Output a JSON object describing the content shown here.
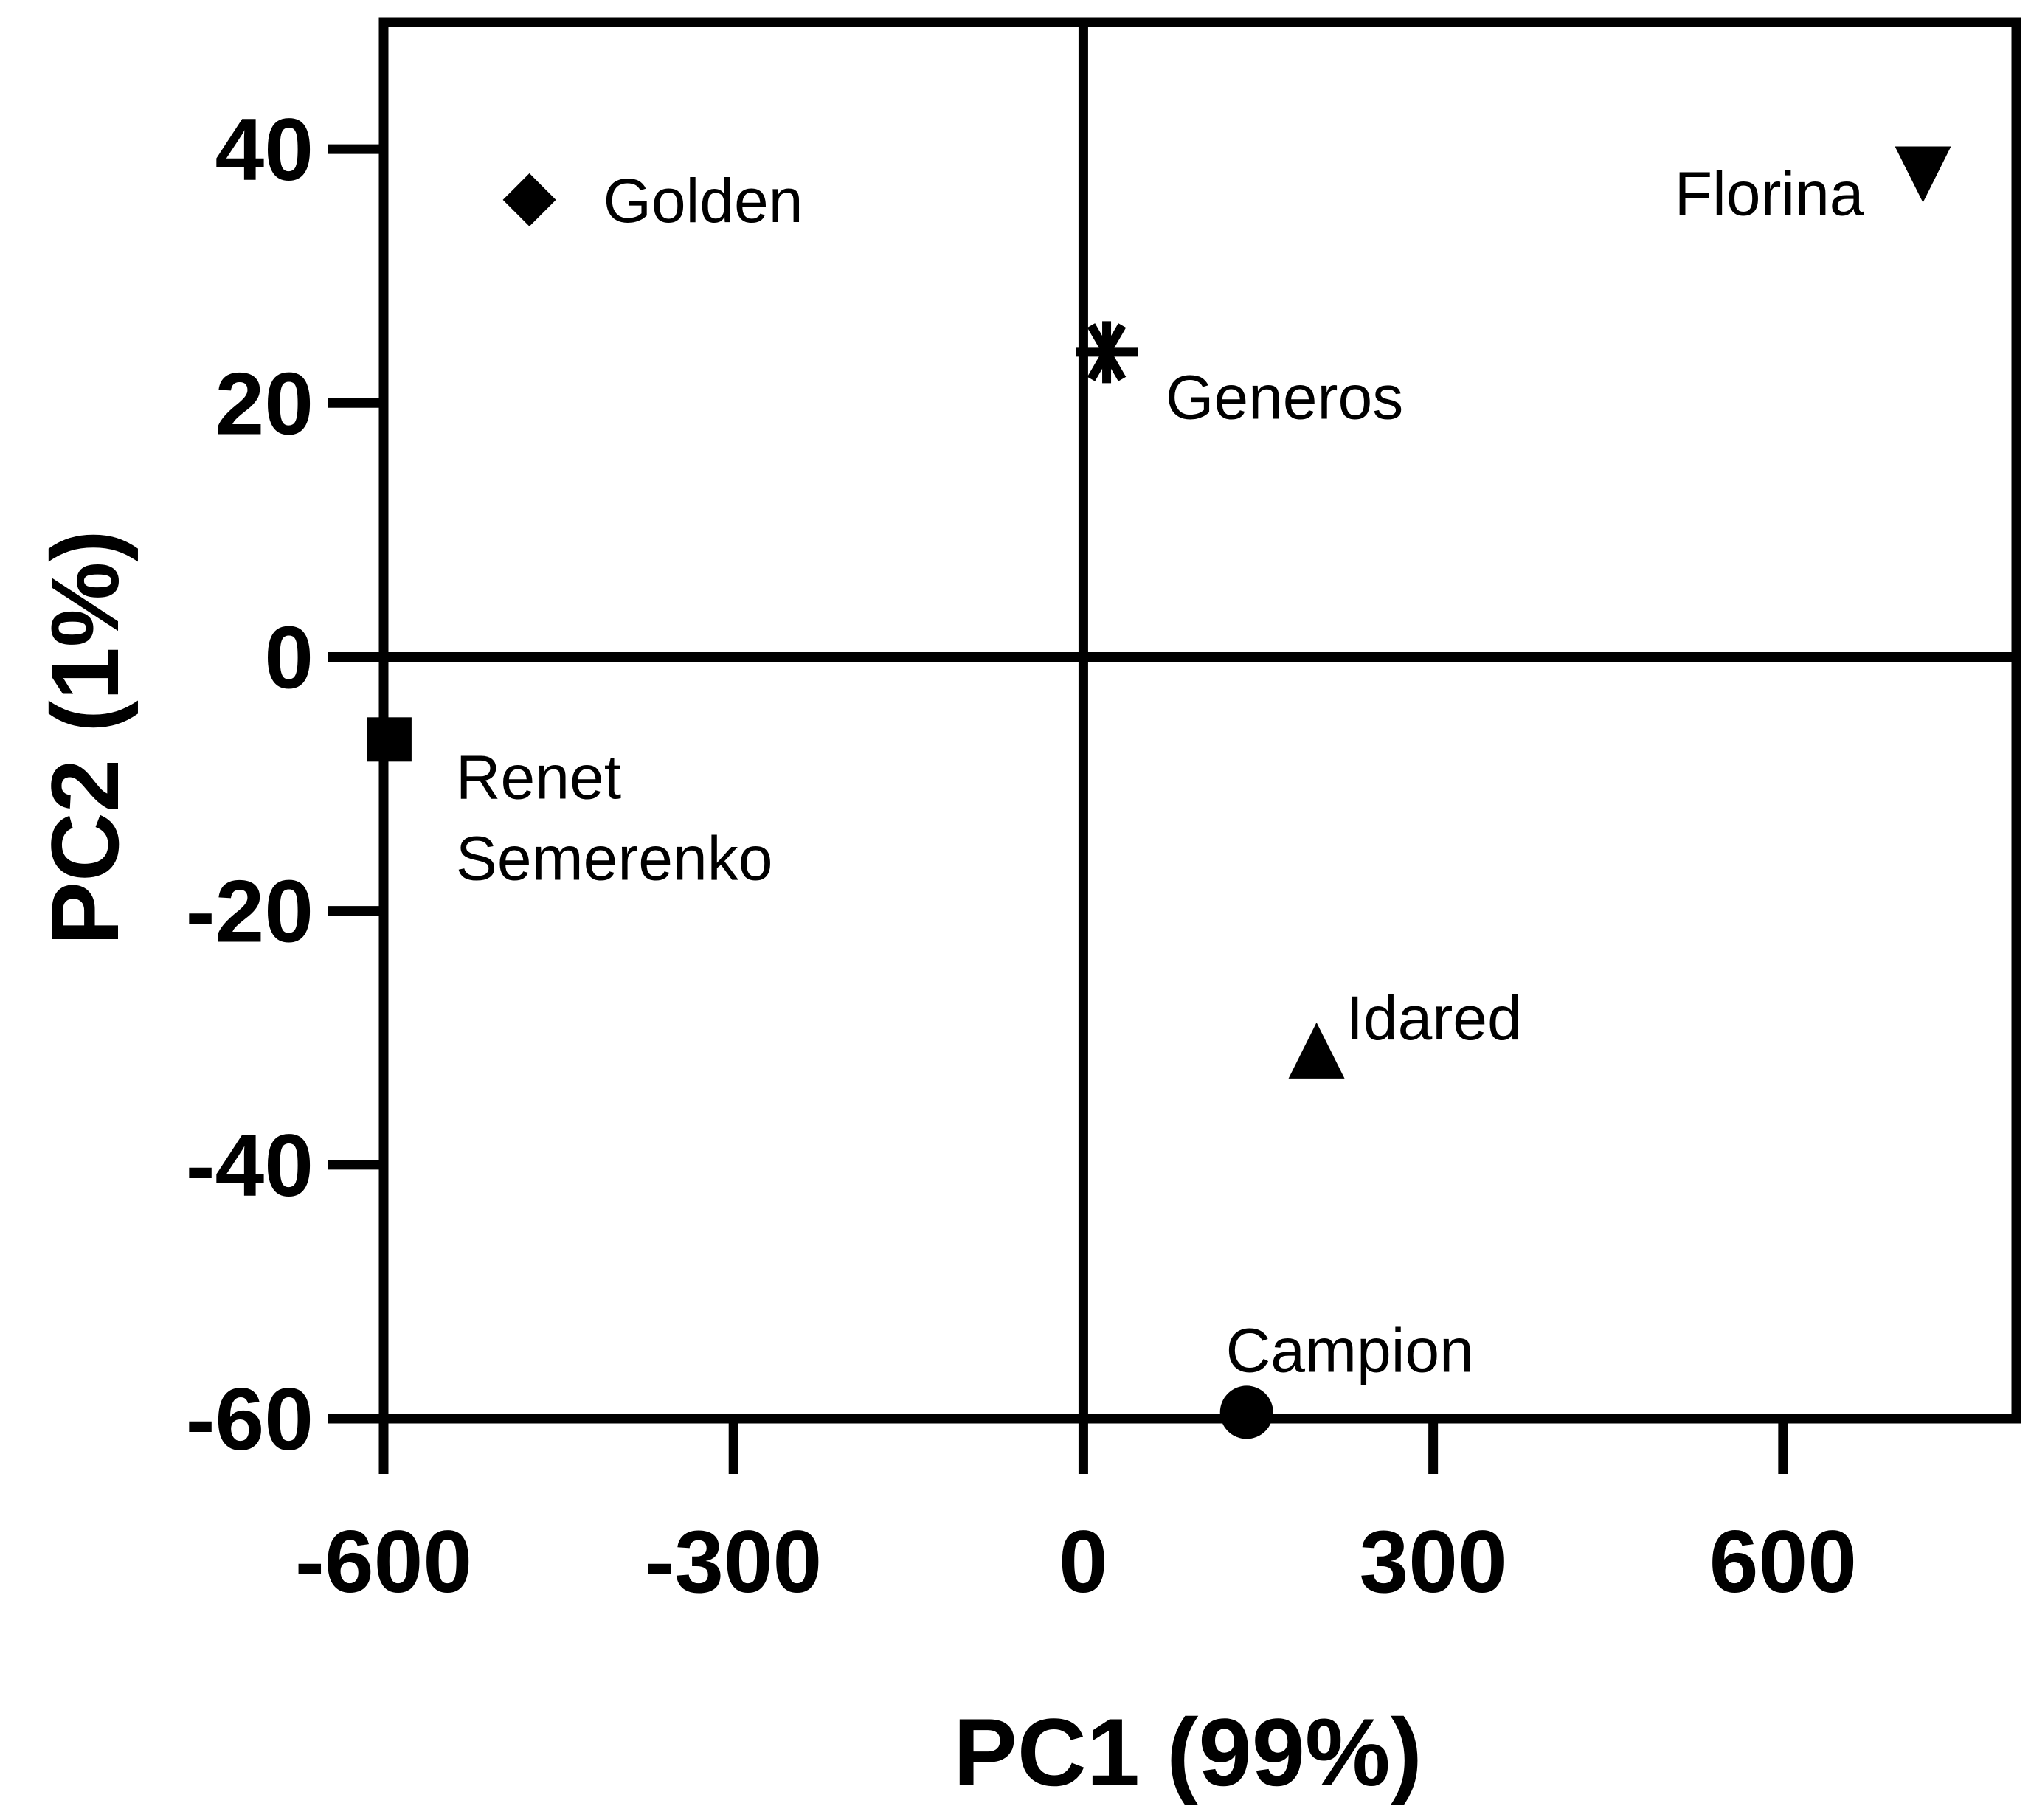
{
  "chart_data": {
    "type": "scatter",
    "title": "",
    "xlabel": "PC1 (99%)",
    "ylabel": "PC2 (1%)",
    "xlim": [
      -600,
      800
    ],
    "ylim": [
      -60,
      50
    ],
    "xticks": [
      "-600",
      "-300",
      "0",
      "300",
      "600"
    ],
    "yticks": [
      "40",
      "20",
      "0",
      "-20",
      "-40",
      "-60"
    ],
    "grid": false,
    "zero_lines": true,
    "points": [
      {
        "label": "Golden",
        "x": -475,
        "y": 36,
        "marker": "diamond"
      },
      {
        "label": "Florina",
        "x": 720,
        "y": 38,
        "marker": "triangle-down"
      },
      {
        "label": "Generos",
        "x": 20,
        "y": 24,
        "marker": "asterisk"
      },
      {
        "label_lines": [
          "Renet",
          "Semerenko"
        ],
        "x": -595,
        "y": -6.5,
        "marker": "square"
      },
      {
        "label": "Idared",
        "x": 200,
        "y": -31,
        "marker": "triangle-up"
      },
      {
        "label": "Campion",
        "x": 140,
        "y": -59.5,
        "marker": "circle"
      }
    ]
  }
}
